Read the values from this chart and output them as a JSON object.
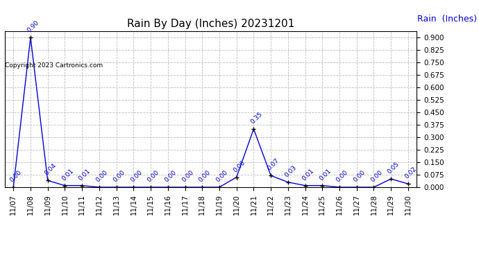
{
  "title": "Rain By Day (Inches) 20231201",
  "legend_label": "Rain  (Inches)",
  "copyright_text": "Copyright 2023 Cartronics.com",
  "x_labels": [
    "11/07",
    "11/08",
    "11/09",
    "11/10",
    "11/11",
    "11/12",
    "11/13",
    "11/14",
    "11/15",
    "11/16",
    "11/17",
    "11/18",
    "11/19",
    "11/20",
    "11/21",
    "11/22",
    "11/23",
    "11/24",
    "11/25",
    "11/26",
    "11/27",
    "11/28",
    "11/29",
    "11/30"
  ],
  "y_values": [
    0.0,
    0.9,
    0.04,
    0.01,
    0.01,
    0.0,
    0.0,
    0.0,
    0.0,
    0.0,
    0.0,
    0.0,
    0.0,
    0.06,
    0.35,
    0.07,
    0.03,
    0.01,
    0.01,
    0.0,
    0.0,
    0.0,
    0.05,
    0.02
  ],
  "point_labels": [
    "0.00",
    "0.90",
    "0.04",
    "0.01",
    "0.01",
    "0.00",
    "0.00",
    "0.00",
    "0.00",
    "0.00",
    "0.00",
    "0.00",
    "0.00",
    "0.06",
    "0.35",
    "0.07",
    "0.03",
    "0.01",
    "0.01",
    "0.00",
    "0.00",
    "0.00",
    "0.05",
    "0.02"
  ],
  "line_color": "#0000cc",
  "marker_color": "#000000",
  "label_color": "#0000cc",
  "background_color": "#ffffff",
  "grid_color": "#bbbbbb",
  "title_color": "#000000",
  "ylim": [
    0.0,
    0.9375
  ],
  "yticks": [
    0.0,
    0.075,
    0.15,
    0.225,
    0.3,
    0.375,
    0.45,
    0.525,
    0.6,
    0.675,
    0.75,
    0.825,
    0.9
  ],
  "title_fontsize": 11,
  "label_fontsize": 6.5,
  "tick_fontsize": 7.5,
  "legend_fontsize": 9,
  "copyright_fontsize": 6.5
}
